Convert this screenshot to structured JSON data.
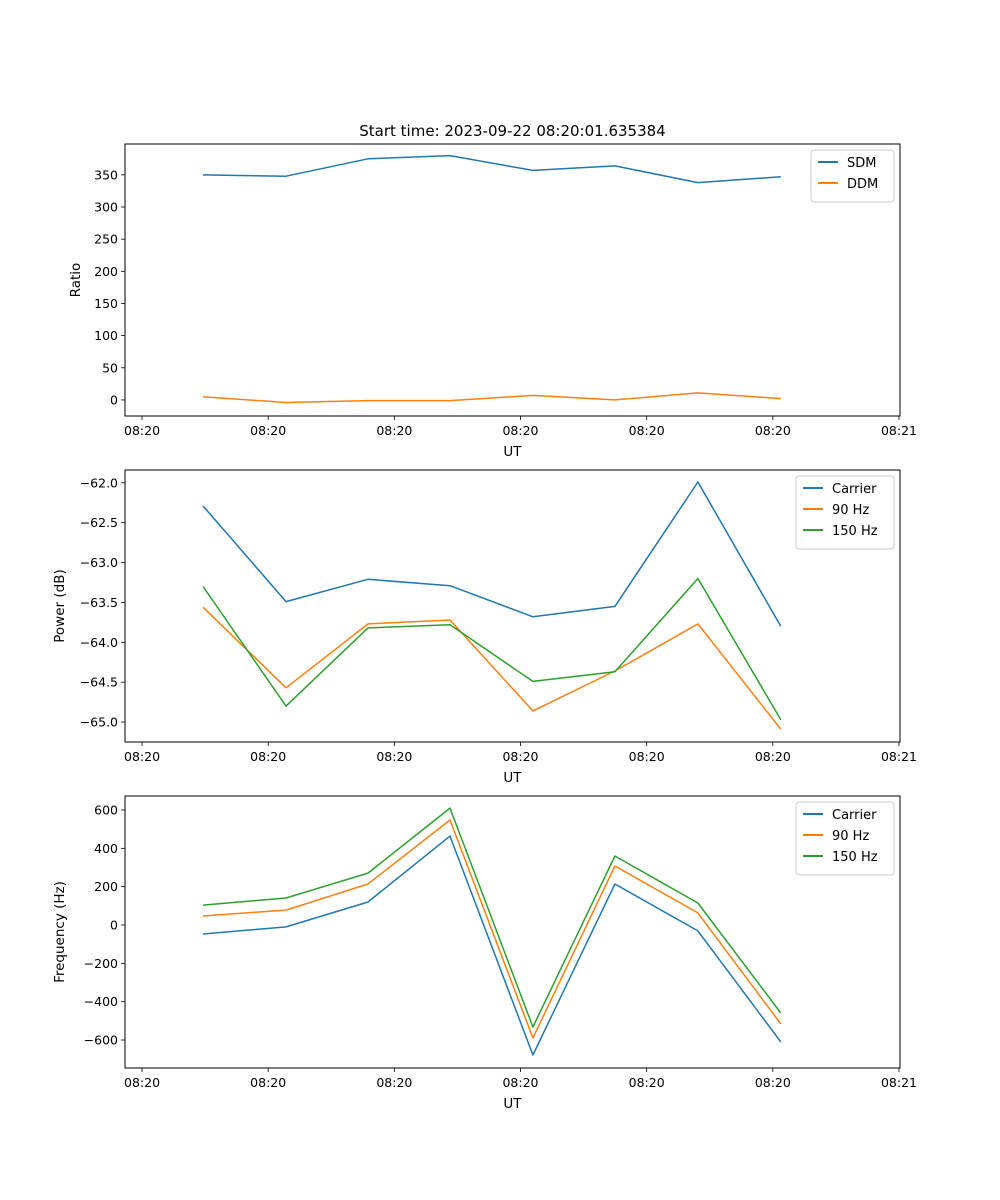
{
  "chart_data": [
    {
      "type": "line",
      "title": "Start time: 2023-09-22 08:20:01.635384",
      "xlabel": "UT",
      "ylabel": "Ratio",
      "x_units": "seconds after 08:20:00",
      "x": [
        4.83,
        11.41,
        17.91,
        24.41,
        30.98,
        37.48,
        44.06,
        50.63
      ],
      "xlim": [
        -1.35,
        60.08
      ],
      "xticks": [
        0,
        10,
        20,
        30,
        40,
        50,
        60
      ],
      "xtick_labels": [
        "08:20",
        "08:20",
        "08:20",
        "08:20",
        "08:20",
        "08:20",
        "08:21"
      ],
      "ylim": [
        -25,
        398
      ],
      "yticks": [
        0,
        50,
        100,
        150,
        200,
        250,
        300,
        350
      ],
      "ytick_labels": [
        "0",
        "50",
        "100",
        "150",
        "200",
        "250",
        "300",
        "350"
      ],
      "legend": "top-right",
      "series": [
        {
          "name": "SDM",
          "color": "#1f77b4",
          "values": [
            350,
            348,
            375,
            380,
            357,
            364,
            338,
            347
          ]
        },
        {
          "name": "DDM",
          "color": "#ff7f0e",
          "values": [
            5,
            -4,
            -1,
            -1,
            7,
            0,
            11,
            2
          ]
        }
      ]
    },
    {
      "type": "line",
      "title": "",
      "xlabel": "UT",
      "ylabel": "Power (dB)",
      "x_units": "seconds after 08:20:00",
      "x": [
        4.83,
        11.41,
        17.91,
        24.41,
        30.98,
        37.48,
        44.06,
        50.63
      ],
      "xlim": [
        -1.35,
        60.08
      ],
      "xticks": [
        0,
        10,
        20,
        30,
        40,
        50,
        60
      ],
      "xtick_labels": [
        "08:20",
        "08:20",
        "08:20",
        "08:20",
        "08:20",
        "08:20",
        "08:21"
      ],
      "ylim": [
        -65.25,
        -61.84
      ],
      "yticks": [
        -65.0,
        -64.5,
        -64.0,
        -63.5,
        -63.0,
        -62.5,
        -62.0
      ],
      "ytick_labels": [
        "−65.0",
        "−64.5",
        "−64.0",
        "−63.5",
        "−63.0",
        "−62.5",
        "−62.0"
      ],
      "legend": "top-right",
      "series": [
        {
          "name": "Carrier",
          "color": "#1f77b4",
          "values": [
            -62.29,
            -63.49,
            -63.21,
            -63.29,
            -63.68,
            -63.55,
            -61.99,
            -63.8
          ]
        },
        {
          "name": "90 Hz",
          "color": "#ff7f0e",
          "values": [
            -63.56,
            -64.57,
            -63.77,
            -63.72,
            -64.86,
            -64.36,
            -63.77,
            -65.09
          ]
        },
        {
          "name": "150 Hz",
          "color": "#2ca02c",
          "values": [
            -63.3,
            -64.8,
            -63.82,
            -63.78,
            -64.49,
            -64.37,
            -63.2,
            -64.97
          ]
        }
      ]
    },
    {
      "type": "line",
      "title": "",
      "xlabel": "UT",
      "ylabel": "Frequency (Hz)",
      "x_units": "seconds after 08:20:00",
      "x": [
        4.83,
        11.41,
        17.91,
        24.41,
        30.98,
        37.48,
        44.06,
        50.63
      ],
      "xlim": [
        -1.35,
        60.08
      ],
      "xticks": [
        0,
        10,
        20,
        30,
        40,
        50,
        60
      ],
      "xtick_labels": [
        "08:20",
        "08:20",
        "08:20",
        "08:20",
        "08:20",
        "08:20",
        "08:21"
      ],
      "ylim": [
        -746,
        673
      ],
      "yticks": [
        -600,
        -400,
        -200,
        0,
        200,
        400,
        600
      ],
      "ytick_labels": [
        "−600",
        "−400",
        "−200",
        "0",
        "200",
        "400",
        "600"
      ],
      "legend": "top-right",
      "series": [
        {
          "name": "Carrier",
          "color": "#1f77b4",
          "values": [
            -47,
            -10,
            120,
            464,
            -678,
            214,
            -31,
            -610
          ]
        },
        {
          "name": "90 Hz",
          "color": "#ff7f0e",
          "values": [
            47,
            78,
            214,
            548,
            -589,
            308,
            63,
            -516
          ]
        },
        {
          "name": "150 Hz",
          "color": "#2ca02c",
          "values": [
            104,
            141,
            271,
            610,
            -532,
            360,
            115,
            -459
          ]
        }
      ]
    }
  ]
}
